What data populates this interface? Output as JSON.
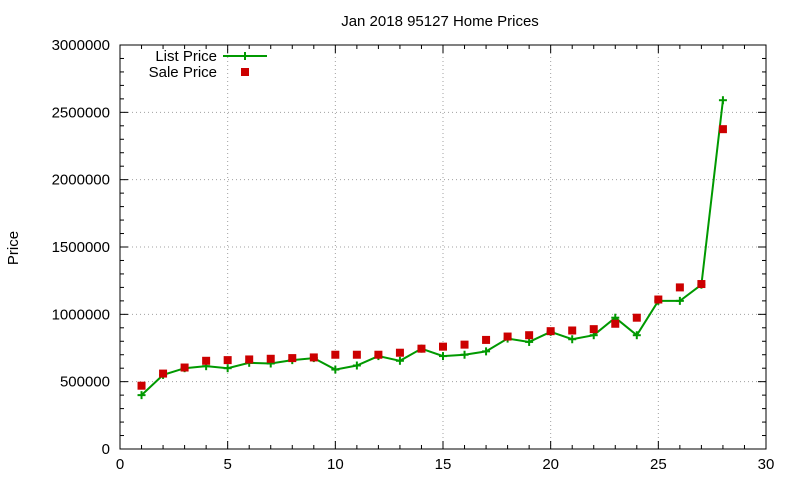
{
  "chart_data": {
    "type": "line",
    "title": "Jan 2018 95127 Home Prices",
    "xlabel": "",
    "ylabel": "Price",
    "xlim": [
      0,
      30
    ],
    "ylim": [
      0,
      3000000
    ],
    "x_ticks": [
      0,
      5,
      10,
      15,
      20,
      25,
      30
    ],
    "y_ticks": [
      0,
      500000,
      1000000,
      1500000,
      2000000,
      2500000,
      3000000
    ],
    "grid": true,
    "legend_position": "top-left",
    "x": [
      1,
      2,
      3,
      4,
      5,
      6,
      7,
      8,
      9,
      10,
      11,
      12,
      13,
      14,
      15,
      16,
      17,
      18,
      19,
      20,
      21,
      22,
      23,
      24,
      25,
      26,
      27,
      28
    ],
    "series": [
      {
        "name": "List Price",
        "style": "linespoints",
        "marker": "plus",
        "color": "#009900",
        "values": [
          400000,
          550000,
          600000,
          615000,
          600000,
          640000,
          635000,
          660000,
          675000,
          590000,
          620000,
          690000,
          655000,
          745000,
          690000,
          700000,
          725000,
          820000,
          795000,
          870000,
          815000,
          845000,
          975000,
          845000,
          1100000,
          1100000,
          1220000,
          2590000
        ]
      },
      {
        "name": "Sale Price",
        "style": "points",
        "marker": "square",
        "color": "#cc0000",
        "values": [
          470000,
          560000,
          605000,
          655000,
          660000,
          665000,
          670000,
          675000,
          680000,
          700000,
          700000,
          700000,
          715000,
          745000,
          760000,
          775000,
          810000,
          835000,
          845000,
          875000,
          880000,
          890000,
          930000,
          975000,
          1110000,
          1200000,
          1225000,
          2375000
        ]
      }
    ]
  }
}
